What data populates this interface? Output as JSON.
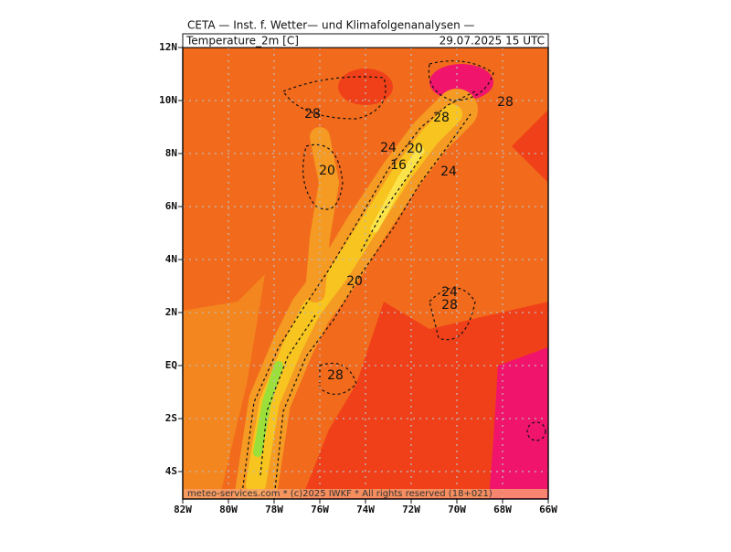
{
  "header": {
    "title": "CETA — Inst. f. Wetter— und Klimafolgenanalysen —",
    "field": "Temperature_2m [C]",
    "time": "29.07.2025 15 UTC"
  },
  "map": {
    "lat_labels": [
      "12N",
      "10N",
      "8N",
      "6N",
      "4N",
      "2N",
      "EQ",
      "2S",
      "4S"
    ],
    "lon_labels": [
      "82W",
      "80W",
      "78W",
      "76W",
      "74W",
      "72W",
      "70W",
      "68W",
      "66W"
    ],
    "contour_labels": [
      "28",
      "24",
      "20",
      "28",
      "28",
      "20",
      "16",
      "24",
      "20",
      "24",
      "28",
      "28"
    ]
  },
  "footer": "meteo-services.com * (c)2025 IWKF * All rights reserved (18+021)"
}
